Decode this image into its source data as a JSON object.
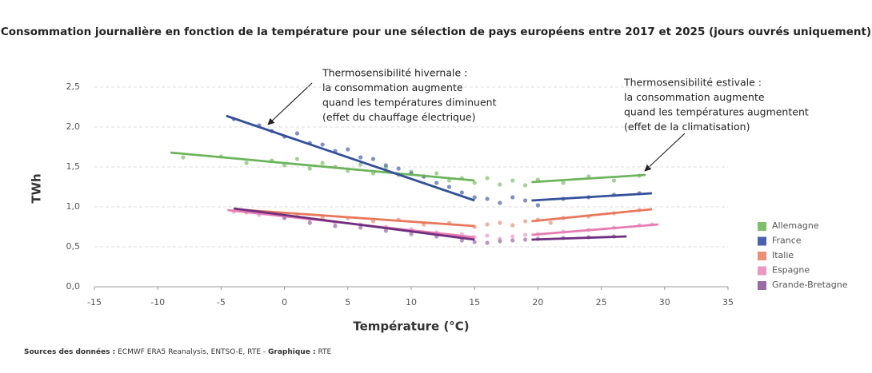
{
  "chart_data": {
    "type": "scatter",
    "title": "Consommation journalière en fonction de la température pour une sélection de pays européens entre 2017 et 2025 (jours ouvrés uniquement)",
    "x_label": "Température (°C)",
    "y_label": "TWh",
    "xlim": [
      -15,
      35
    ],
    "xticks": [
      -15,
      -10,
      -5,
      0,
      5,
      10,
      15,
      20,
      25,
      30,
      35
    ],
    "ylim": [
      0,
      2.5
    ],
    "yticks": [
      {
        "value": 0,
        "label": "0,0"
      },
      {
        "value": 0.5,
        "label": "0,5"
      },
      {
        "value": 1,
        "label": "1,0"
      },
      {
        "value": 1.5,
        "label": "1,5"
      },
      {
        "value": 2,
        "label": "2,0"
      },
      {
        "value": 2.5,
        "label": "2,5"
      }
    ],
    "grid": true,
    "legend": "right",
    "series": [
      {
        "name": "Allemagne",
        "color": "#7dbf6a",
        "trend_color": "#6cb55c",
        "x": [
          -8,
          -5,
          -3,
          -1,
          0,
          1,
          2,
          3,
          4,
          5,
          6,
          7,
          8,
          9,
          10,
          11,
          12,
          13,
          14,
          15,
          16,
          17,
          18,
          19,
          20,
          22,
          24,
          26,
          28
        ],
        "values": [
          1.62,
          1.63,
          1.55,
          1.58,
          1.52,
          1.6,
          1.48,
          1.55,
          1.5,
          1.45,
          1.53,
          1.42,
          1.49,
          1.4,
          1.44,
          1.38,
          1.42,
          1.33,
          1.36,
          1.3,
          1.36,
          1.28,
          1.33,
          1.27,
          1.34,
          1.3,
          1.38,
          1.33,
          1.39
        ],
        "trend": [
          {
            "x": [
              -9,
              15
            ],
            "values": [
              1.68,
              1.33
            ]
          },
          {
            "x": [
              19.5,
              28.5
            ],
            "values": [
              1.31,
              1.4
            ]
          }
        ]
      },
      {
        "name": "France",
        "color": "#4a62ad",
        "trend_color": "#34509a",
        "x": [
          -4,
          -2,
          -1,
          0,
          1,
          2,
          3,
          4,
          5,
          6,
          7,
          8,
          9,
          10,
          11,
          12,
          13,
          14,
          15,
          16,
          17,
          18,
          19,
          20,
          22,
          24,
          26,
          28
        ],
        "values": [
          2.1,
          2.02,
          1.95,
          1.88,
          1.92,
          1.8,
          1.78,
          1.7,
          1.72,
          1.62,
          1.6,
          1.52,
          1.48,
          1.42,
          1.38,
          1.3,
          1.25,
          1.18,
          1.12,
          1.1,
          1.05,
          1.12,
          1.08,
          1.02,
          1.1,
          1.12,
          1.15,
          1.17
        ],
        "trend": [
          {
            "x": [
              -4.6,
              15
            ],
            "values": [
              2.14,
              1.08
            ]
          },
          {
            "x": [
              19.5,
              29
            ],
            "values": [
              1.08,
              1.17
            ]
          }
        ]
      },
      {
        "name": "Italie",
        "color": "#eb9078",
        "trend_color": "#e8775c",
        "x": [
          -3,
          -1,
          1,
          3,
          5,
          7,
          9,
          11,
          13,
          15,
          16,
          17,
          18,
          19,
          20,
          21,
          22,
          24,
          26,
          28
        ],
        "values": [
          0.93,
          0.92,
          0.88,
          0.86,
          0.86,
          0.82,
          0.84,
          0.78,
          0.8,
          0.75,
          0.78,
          0.8,
          0.77,
          0.82,
          0.84,
          0.8,
          0.86,
          0.88,
          0.92,
          0.96
        ],
        "trend": [
          {
            "x": [
              -4,
              15
            ],
            "values": [
              0.97,
              0.76
            ]
          },
          {
            "x": [
              19.5,
              29
            ],
            "values": [
              0.82,
              0.97
            ]
          }
        ]
      },
      {
        "name": "Espagne",
        "color": "#ec98c4",
        "trend_color": "#e67cb2",
        "x": [
          -4,
          -2,
          0,
          2,
          4,
          6,
          8,
          10,
          12,
          14,
          15,
          16,
          17,
          18,
          19,
          20,
          22,
          24,
          26,
          28,
          29
        ],
        "values": [
          0.94,
          0.9,
          0.87,
          0.84,
          0.8,
          0.78,
          0.75,
          0.72,
          0.68,
          0.66,
          0.62,
          0.64,
          0.6,
          0.63,
          0.65,
          0.66,
          0.69,
          0.71,
          0.74,
          0.77,
          0.78
        ],
        "trend": [
          {
            "x": [
              -4.5,
              15
            ],
            "values": [
              0.96,
              0.62
            ]
          },
          {
            "x": [
              19.5,
              29.5
            ],
            "values": [
              0.65,
              0.78
            ]
          }
        ]
      },
      {
        "name": "Grande-Bretagne",
        "color": "#9a6aa8",
        "trend_color": "#6e2f80",
        "x": [
          -3,
          -1,
          0,
          2,
          4,
          6,
          8,
          10,
          12,
          14,
          15,
          16,
          17,
          18,
          19,
          20,
          22,
          24,
          26
        ],
        "values": [
          0.95,
          0.92,
          0.86,
          0.8,
          0.76,
          0.74,
          0.7,
          0.66,
          0.63,
          0.58,
          0.56,
          0.55,
          0.57,
          0.58,
          0.59,
          0.6,
          0.61,
          0.62,
          0.63
        ],
        "trend": [
          {
            "x": [
              -4,
              15
            ],
            "values": [
              0.98,
              0.59
            ]
          },
          {
            "x": [
              19.5,
              27
            ],
            "values": [
              0.59,
              0.63
            ]
          }
        ]
      }
    ],
    "annotations": [
      {
        "lines": [
          "Thermosensibilité hivernale :",
          "la consommation augmente",
          "quand les températures diminuent",
          "(effet du chauffage électrique)"
        ]
      },
      {
        "lines": [
          "Thermosensibilité estivale :",
          "la consommation augmente",
          "quand les températures augmentent",
          "(effet de la climatisation)"
        ]
      }
    ],
    "source": [
      "Sources des données :",
      "ECMWF ERA5 Reanalysis, ENTSO-E, RTE -",
      "Graphique :",
      "RTE"
    ]
  }
}
